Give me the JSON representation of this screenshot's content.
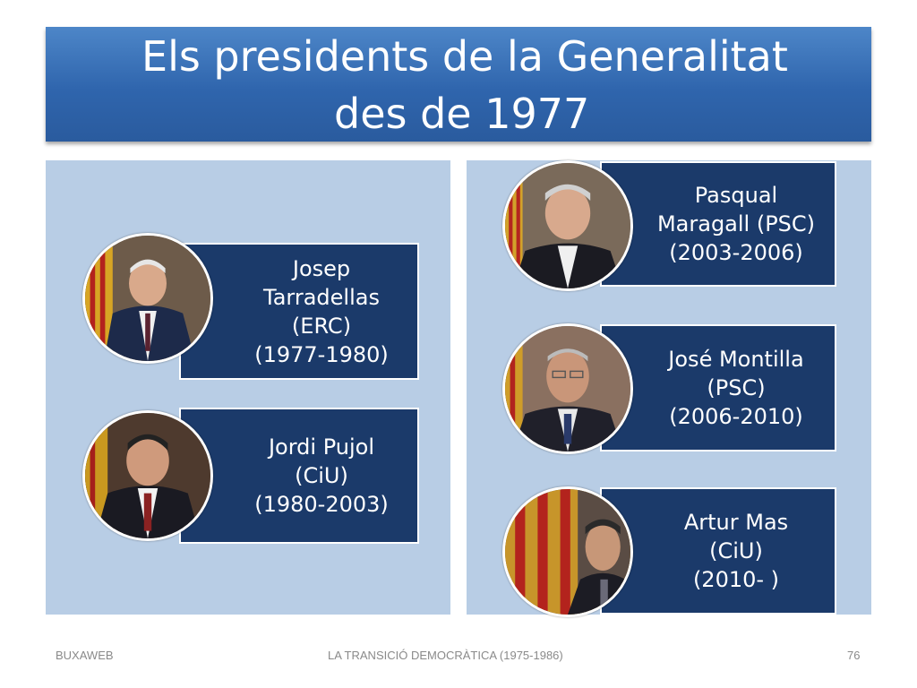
{
  "title": {
    "line1": "Els presidents de la Generalitat",
    "line2": "des de 1977"
  },
  "presidents": [
    {
      "text": "Josep\nTarradellas\n(ERC)\n(1977-1980)"
    },
    {
      "text": "Jordi Pujol\n(CiU)\n(1980-2003)"
    },
    {
      "text": "Pasqual\nMaragall (PSC)\n(2003-2006)"
    },
    {
      "text": "José Montilla\n(PSC)\n(2006-2010)"
    },
    {
      "text": "Artur Mas\n(CiU)\n(2010- )"
    }
  ],
  "footer": {
    "left": "BUXAWEB",
    "center": "LA TRANSICIÓ DEMOCRÀTICA (1975-1986)",
    "page_number": "76"
  },
  "colors": {
    "title_bar": "#2f65ad",
    "panel": "#b8cde5",
    "box": "#1b3a6a"
  }
}
